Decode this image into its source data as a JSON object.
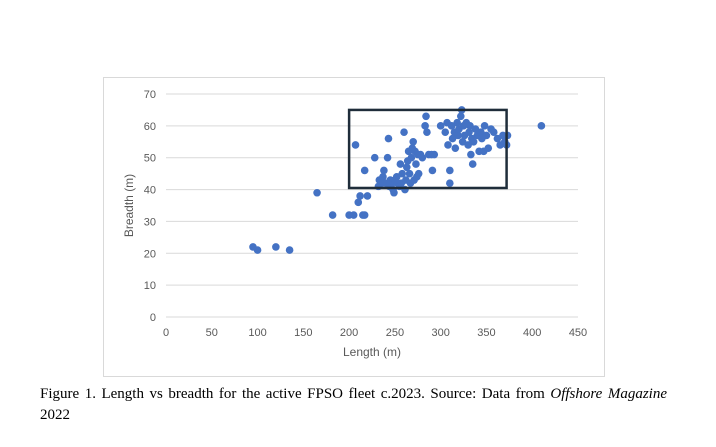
{
  "caption": {
    "text_before": "Figure 1. Length vs breadth for the active FPSO fleet c.2023. Source: Data from ",
    "italic": "Offshore Magazine",
    "text_after": " 2022"
  },
  "colors": {
    "points": "#4472c4",
    "highlight_box": "#1f2d3a",
    "gridline": "#d9d9d9",
    "axis_text": "#595959"
  },
  "chart_data": {
    "type": "scatter",
    "title": "",
    "xlabel": "Length (m)",
    "ylabel": "Breadth (m)",
    "xlim": [
      0,
      450
    ],
    "ylim": [
      0,
      70
    ],
    "xticks": [
      0,
      50,
      100,
      150,
      200,
      250,
      300,
      350,
      400,
      450
    ],
    "yticks": [
      0,
      10,
      20,
      30,
      40,
      50,
      60,
      70
    ],
    "grid": "horizontal",
    "legend": "none",
    "highlight_box": {
      "x": [
        200,
        372
      ],
      "y": [
        40.5,
        65
      ]
    },
    "points": [
      [
        95,
        22
      ],
      [
        100,
        21
      ],
      [
        120,
        22
      ],
      [
        135,
        21
      ],
      [
        165,
        39
      ],
      [
        182,
        32
      ],
      [
        200,
        32
      ],
      [
        205,
        32
      ],
      [
        210,
        36
      ],
      [
        212,
        38
      ],
      [
        215,
        32
      ],
      [
        217,
        32
      ],
      [
        217,
        46
      ],
      [
        220,
        38
      ],
      [
        207,
        54
      ],
      [
        228,
        50
      ],
      [
        232,
        41
      ],
      [
        233,
        43
      ],
      [
        236,
        42
      ],
      [
        237,
        44
      ],
      [
        238,
        46
      ],
      [
        240,
        42
      ],
      [
        242,
        50
      ],
      [
        243,
        56
      ],
      [
        244,
        41
      ],
      [
        245,
        43
      ],
      [
        247,
        42
      ],
      [
        248,
        40
      ],
      [
        249,
        39
      ],
      [
        250,
        43
      ],
      [
        252,
        44
      ],
      [
        253,
        42
      ],
      [
        255,
        41
      ],
      [
        256,
        48
      ],
      [
        257,
        42
      ],
      [
        258,
        45
      ],
      [
        260,
        58
      ],
      [
        261,
        40
      ],
      [
        262,
        43
      ],
      [
        263,
        47
      ],
      [
        264,
        49
      ],
      [
        265,
        52
      ],
      [
        266,
        45
      ],
      [
        267,
        42
      ],
      [
        268,
        50
      ],
      [
        269,
        53
      ],
      [
        270,
        55
      ],
      [
        271,
        43
      ],
      [
        272,
        52
      ],
      [
        273,
        48
      ],
      [
        274,
        44
      ],
      [
        275,
        51
      ],
      [
        276,
        45
      ],
      [
        278,
        51
      ],
      [
        280,
        50
      ],
      [
        283,
        60
      ],
      [
        284,
        63
      ],
      [
        285,
        58
      ],
      [
        287,
        51
      ],
      [
        290,
        51
      ],
      [
        291,
        46
      ],
      [
        293,
        51
      ],
      [
        300,
        60
      ],
      [
        305,
        58
      ],
      [
        307,
        61
      ],
      [
        308,
        54
      ],
      [
        310,
        42
      ],
      [
        310,
        46
      ],
      [
        312,
        60
      ],
      [
        313,
        56
      ],
      [
        315,
        58
      ],
      [
        316,
        53
      ],
      [
        318,
        61
      ],
      [
        319,
        57
      ],
      [
        320,
        59
      ],
      [
        322,
        63
      ],
      [
        323,
        65
      ],
      [
        324,
        55
      ],
      [
        325,
        60
      ],
      [
        326,
        57
      ],
      [
        328,
        61
      ],
      [
        330,
        54
      ],
      [
        331,
        58
      ],
      [
        332,
        60
      ],
      [
        333,
        51
      ],
      [
        334,
        56
      ],
      [
        335,
        48
      ],
      [
        336,
        55
      ],
      [
        338,
        59
      ],
      [
        340,
        57
      ],
      [
        342,
        52
      ],
      [
        344,
        58
      ],
      [
        345,
        56
      ],
      [
        347,
        52
      ],
      [
        348,
        60
      ],
      [
        350,
        57
      ],
      [
        352,
        53
      ],
      [
        355,
        59
      ],
      [
        358,
        58
      ],
      [
        362,
        56
      ],
      [
        365,
        54
      ],
      [
        368,
        57
      ],
      [
        370,
        55
      ],
      [
        372,
        54
      ],
      [
        373,
        57
      ],
      [
        410,
        60
      ]
    ]
  }
}
